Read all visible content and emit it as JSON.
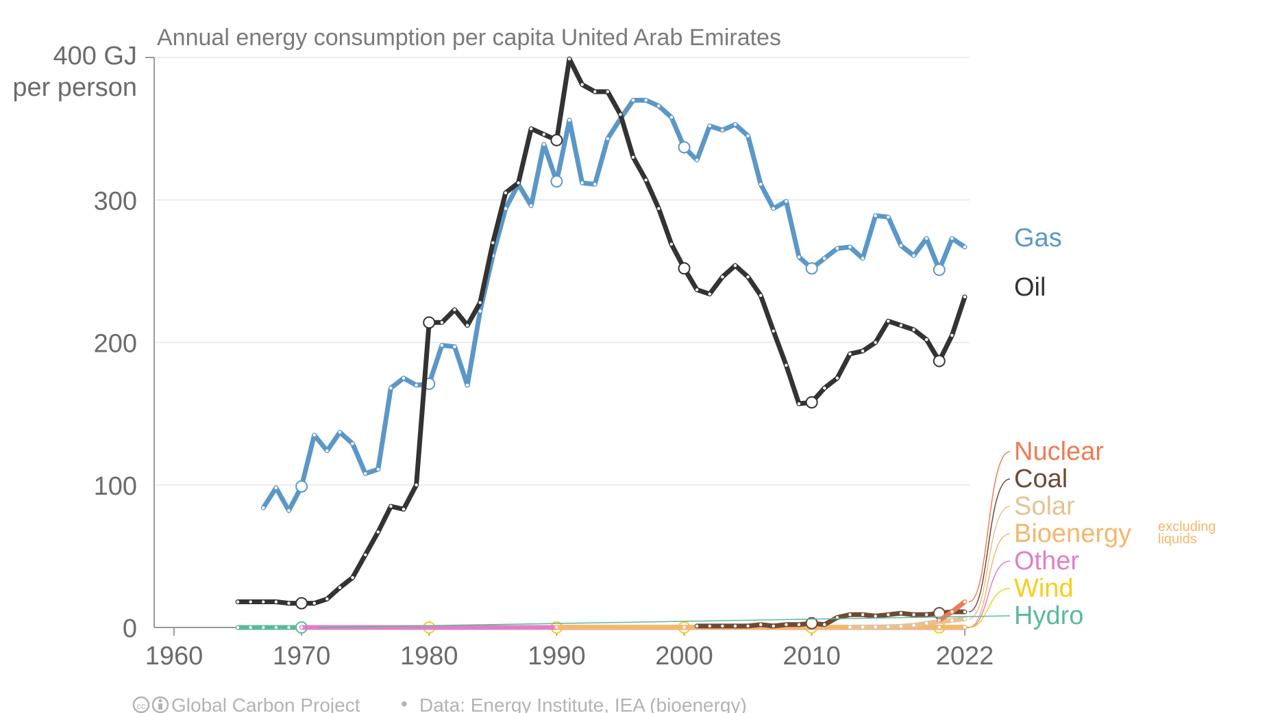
{
  "chart_data": {
    "type": "line",
    "title": "Annual energy consumption per capita United Arab Emirates",
    "ylabel_lines": [
      "400 GJ",
      "per person"
    ],
    "y_ticks": [
      0,
      100,
      200,
      300
    ],
    "y_tick_labels": [
      "0",
      "100",
      "200",
      "300"
    ],
    "ylim": [
      0,
      400
    ],
    "xlim": [
      1960,
      2022
    ],
    "x_ticks": [
      1960,
      1970,
      1980,
      1990,
      2000,
      2010,
      2022
    ],
    "x_tick_labels": [
      "1960",
      "1970",
      "1980",
      "1990",
      "2000",
      "2010",
      "2022"
    ],
    "grid": true,
    "legend": "right, labels at line ends",
    "series": [
      {
        "name": "Gas",
        "color": "#5b97c7",
        "x": [
          1967,
          1968,
          1969,
          1970,
          1971,
          1972,
          1973,
          1974,
          1975,
          1976,
          1977,
          1978,
          1979,
          1980,
          1981,
          1982,
          1983,
          1984,
          1985,
          1986,
          1987,
          1988,
          1989,
          1990,
          1991,
          1992,
          1993,
          1994,
          1995,
          1996,
          1997,
          1998,
          1999,
          2000,
          2001,
          2002,
          2003,
          2004,
          2005,
          2006,
          2007,
          2008,
          2009,
          2010,
          2011,
          2012,
          2013,
          2014,
          2015,
          2016,
          2017,
          2018,
          2019,
          2020,
          2021,
          2022
        ],
        "values": [
          84,
          98,
          82,
          99,
          135,
          124,
          137,
          129,
          108,
          111,
          168,
          175,
          170,
          171,
          198,
          197,
          170,
          222,
          261,
          294,
          311,
          296,
          339,
          313,
          356,
          312,
          311,
          343,
          357,
          370,
          370,
          366,
          358,
          337,
          328,
          352,
          349,
          353,
          345,
          311,
          294,
          299,
          260,
          252,
          259,
          266,
          267,
          259,
          289,
          288,
          268,
          261,
          273,
          251,
          273,
          267
        ]
      },
      {
        "name": "Oil",
        "color": "#333333",
        "x": [
          1965,
          1966,
          1967,
          1968,
          1969,
          1970,
          1971,
          1972,
          1973,
          1974,
          1975,
          1976,
          1977,
          1978,
          1979,
          1980,
          1981,
          1982,
          1983,
          1984,
          1985,
          1986,
          1987,
          1988,
          1989,
          1990,
          1991,
          1992,
          1993,
          1994,
          1995,
          1996,
          1997,
          1998,
          1999,
          2000,
          2001,
          2002,
          2003,
          2004,
          2005,
          2006,
          2007,
          2008,
          2009,
          2010,
          2011,
          2012,
          2013,
          2014,
          2015,
          2016,
          2017,
          2018,
          2019,
          2020,
          2021,
          2022
        ],
        "values": [
          18,
          18,
          18,
          18,
          17,
          17,
          17,
          20,
          28,
          35,
          51,
          67,
          85,
          83,
          100,
          214,
          214,
          223,
          212,
          228,
          270,
          305,
          312,
          350,
          346,
          342,
          399,
          381,
          376,
          376,
          360,
          330,
          314,
          294,
          269,
          252,
          237,
          234,
          246,
          254,
          246,
          233,
          208,
          184,
          157,
          158,
          168,
          175,
          192,
          194,
          200,
          215,
          212,
          209,
          202,
          187,
          205,
          232
        ]
      },
      {
        "name": "Nuclear",
        "color": "#f07a52",
        "x": [
          2020,
          2021,
          2022
        ],
        "values": [
          5,
          11,
          18
        ]
      },
      {
        "name": "Coal",
        "color": "#6e4a35",
        "x": [
          2001,
          2002,
          2003,
          2004,
          2005,
          2006,
          2007,
          2008,
          2009,
          2010,
          2011,
          2012,
          2013,
          2014,
          2015,
          2016,
          2017,
          2018,
          2019,
          2020,
          2021,
          2022
        ],
        "values": [
          1,
          1,
          1,
          1,
          1,
          2,
          1,
          2,
          2,
          3,
          2,
          7,
          9,
          9,
          8,
          9,
          10,
          9,
          9,
          10,
          11,
          11
        ]
      },
      {
        "name": "Solar",
        "color": "#e3c394",
        "x": [
          2013,
          2014,
          2015,
          2016,
          2017,
          2018,
          2019,
          2020,
          2021,
          2022
        ],
        "values": [
          0.2,
          0.3,
          0.4,
          0.5,
          0.8,
          1.5,
          3,
          4,
          5,
          6
        ]
      },
      {
        "name": "Bioenergy",
        "note": "excluding liquids",
        "color": "#f5b76a",
        "x": [
          1990,
          2000,
          2010,
          2020,
          2022
        ],
        "values": [
          0.2,
          0.2,
          0.2,
          0.2,
          0.2
        ]
      },
      {
        "name": "Other",
        "color": "#e07fc6",
        "x": [
          1970,
          2022
        ],
        "values": [
          0,
          0
        ]
      },
      {
        "name": "Wind",
        "color": "#f5cf1b",
        "x": [
          1971,
          1972,
          1973,
          1974,
          1975,
          1976,
          1977,
          1978,
          1979,
          1980,
          1981,
          1982,
          1983,
          1984,
          1985,
          1986,
          1987,
          1988,
          1989,
          1990,
          1991,
          1992,
          1993,
          1994,
          1995,
          1996,
          1997,
          1998,
          1999,
          2000,
          2001,
          2002,
          2003,
          2004,
          2005,
          2006,
          2007,
          2008,
          2009,
          2010,
          2011,
          2012,
          2013,
          2014,
          2015,
          2016,
          2017,
          2018,
          2019,
          2020,
          2021,
          2022
        ],
        "values": [
          0,
          0,
          0,
          0,
          0,
          0,
          0,
          0,
          0,
          0,
          0,
          0,
          0,
          0,
          0,
          0,
          0,
          0,
          0,
          0,
          0,
          0,
          0,
          0,
          0,
          0,
          0,
          0,
          0,
          0,
          0,
          0,
          0,
          0,
          0,
          0,
          0,
          0,
          0,
          0,
          0,
          0,
          0,
          0,
          0,
          0,
          0,
          0,
          0,
          0,
          0,
          0
        ]
      },
      {
        "name": "Hydro",
        "color": "#5bb99b",
        "x": [
          1965,
          1966,
          1967,
          1968,
          1969,
          1970,
          1971
        ],
        "values": [
          0,
          0,
          0,
          0,
          0,
          0,
          0
        ]
      }
    ]
  },
  "footer": {
    "cc_icon": "cc-icon",
    "by_icon": "by-icon",
    "source_left": "Global Carbon Project",
    "separator": "•",
    "source_right": "Data: Energy Institute, IEA (bioenergy)"
  }
}
